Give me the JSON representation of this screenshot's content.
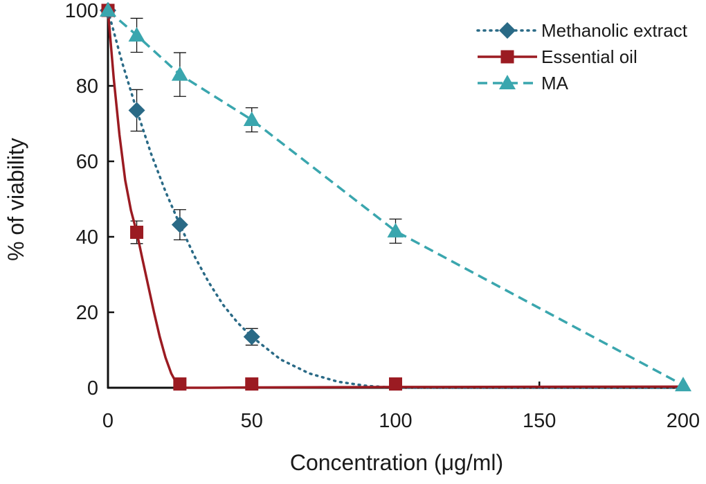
{
  "chart_data": {
    "type": "line",
    "xlabel": "Concentration (μg/ml)",
    "ylabel": "% of viability",
    "xlim": [
      0,
      200
    ],
    "ylim": [
      0,
      100
    ],
    "xticks": [
      0,
      50,
      100,
      150,
      200
    ],
    "yticks": [
      0,
      20,
      40,
      60,
      80,
      100
    ],
    "x_tick_labels": [
      "0",
      "50",
      "100",
      "150",
      "200"
    ],
    "y_tick_labels": [
      "0",
      "20",
      "40",
      "60",
      "80",
      "100"
    ],
    "grid": false,
    "legend_position": "top-right",
    "series": [
      {
        "name": "Methanolic extract",
        "marker": "diamond",
        "line_style": "dotted",
        "color": "#2a6a86",
        "points": [
          {
            "x": 0,
            "y": 100,
            "err": 0
          },
          {
            "x": 10,
            "y": 73.5,
            "err": 5.5
          },
          {
            "x": 25,
            "y": 43.2,
            "err": 4
          },
          {
            "x": 50,
            "y": 13.5,
            "err": 2.2
          }
        ],
        "curve": [
          [
            0,
            100
          ],
          [
            5,
            86
          ],
          [
            10,
            73.5
          ],
          [
            15,
            62
          ],
          [
            20,
            52
          ],
          [
            25,
            43.2
          ],
          [
            30,
            35
          ],
          [
            35,
            28
          ],
          [
            40,
            22
          ],
          [
            45,
            17.3
          ],
          [
            50,
            13.5
          ],
          [
            60,
            7.5
          ],
          [
            70,
            3.8
          ],
          [
            80,
            1.6
          ],
          [
            90,
            0.5
          ],
          [
            100,
            0
          ],
          [
            150,
            0
          ],
          [
            200,
            0
          ]
        ]
      },
      {
        "name": "Essential oil",
        "marker": "square",
        "line_style": "solid",
        "color": "#9b1b22",
        "points": [
          {
            "x": 0,
            "y": 100,
            "err": 0
          },
          {
            "x": 10,
            "y": 41.2,
            "err": 3
          },
          {
            "x": 25,
            "y": 1,
            "err": 0
          },
          {
            "x": 50,
            "y": 1,
            "err": 0
          },
          {
            "x": 100,
            "y": 1,
            "err": 0
          }
        ],
        "curve": [
          [
            0,
            100
          ],
          [
            2,
            82
          ],
          [
            4,
            67
          ],
          [
            6,
            55
          ],
          [
            8,
            47
          ],
          [
            10,
            41.2
          ],
          [
            12,
            34
          ],
          [
            14,
            27
          ],
          [
            16,
            20
          ],
          [
            18,
            13.5
          ],
          [
            20,
            8
          ],
          [
            22,
            3.8
          ],
          [
            24,
            1
          ],
          [
            27,
            0
          ],
          [
            35,
            0
          ],
          [
            50,
            0.1
          ],
          [
            100,
            0.2
          ],
          [
            200,
            0.3
          ]
        ]
      },
      {
        "name": "MA",
        "marker": "triangle",
        "line_style": "dashed",
        "color": "#3aa6ae",
        "points": [
          {
            "x": 0,
            "y": 100,
            "err": 0
          },
          {
            "x": 10,
            "y": 93.4,
            "err": 4.5
          },
          {
            "x": 25,
            "y": 83,
            "err": 5.8
          },
          {
            "x": 50,
            "y": 71,
            "err": 3.2
          },
          {
            "x": 100,
            "y": 41.5,
            "err": 3.2
          },
          {
            "x": 200,
            "y": 0.7,
            "err": 0
          }
        ]
      }
    ]
  }
}
